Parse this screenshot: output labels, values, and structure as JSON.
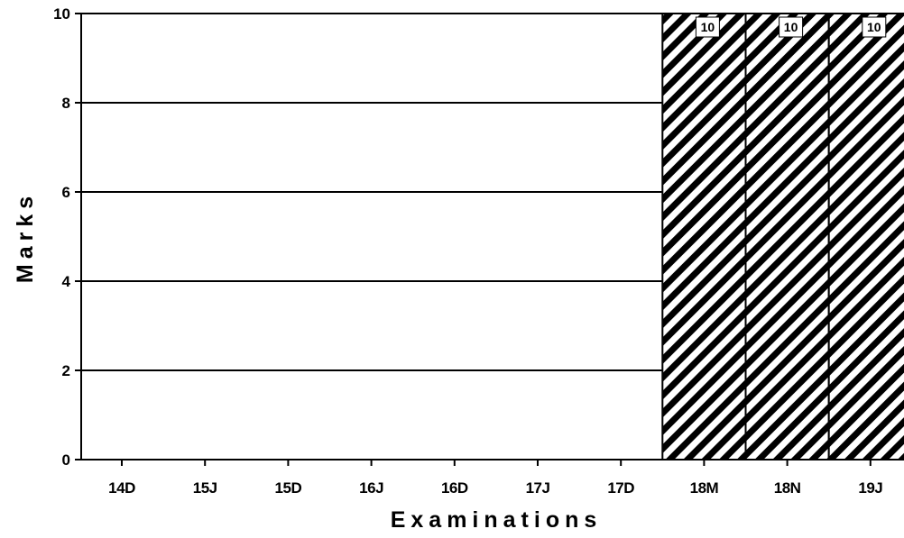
{
  "chart_data": {
    "type": "bar",
    "title": "",
    "xlabel": "Examinations",
    "ylabel": "Marks",
    "categories": [
      "14D",
      "15J",
      "15D",
      "16J",
      "16D",
      "17J",
      "17D",
      "18M",
      "18N",
      "19J"
    ],
    "series": [
      {
        "values": [
          null,
          null,
          null,
          null,
          null,
          null,
          null,
          10,
          10,
          10
        ],
        "data_labels": [
          "",
          "",
          "",
          "",
          "",
          "",
          "",
          "10",
          "10",
          "10"
        ]
      }
    ],
    "ylim": [
      0,
      10
    ],
    "yticks": [
      "0",
      "2",
      "4",
      "6",
      "8",
      "10"
    ],
    "grid": "horizontal",
    "bar_fill": "diagonal-hatch",
    "colors": {
      "ink": "#000000",
      "background": "#ffffff"
    }
  }
}
